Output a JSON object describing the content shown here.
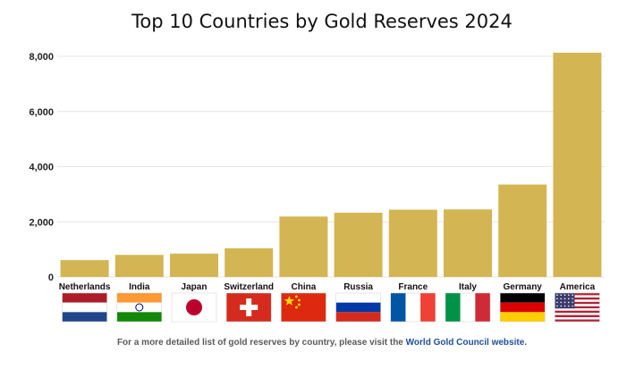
{
  "title": "Top 10 Countries by Gold Reserves 2024",
  "footnote": {
    "text": "For a more detailed list of gold reserves by country, please visit the ",
    "link_text": "World Gold Council website",
    "end": "."
  },
  "colors": {
    "bar": "#d4b553",
    "grid": "#e6e6e6",
    "link": "#1f4e9a"
  },
  "chart_data": {
    "type": "bar",
    "title": "Top 10 Countries by Gold Reserves 2024",
    "xlabel": "",
    "ylabel": "",
    "ylim": [
      0,
      8000
    ],
    "yticks": [
      0,
      2000,
      4000,
      6000,
      8000
    ],
    "ytick_labels": [
      "0",
      "2,000",
      "4,000",
      "6,000",
      "8,000"
    ],
    "grid": true,
    "categories": [
      "Netherlands",
      "India",
      "Japan",
      "Switzerland",
      "China",
      "Russia",
      "France",
      "Italy",
      "Germany",
      "America"
    ],
    "values": [
      612,
      800,
      846,
      1040,
      2190,
      2330,
      2440,
      2450,
      3350,
      8130
    ],
    "flags": [
      "netherlands-flag",
      "india-flag",
      "japan-flag",
      "switzerland-flag",
      "china-flag",
      "russia-flag",
      "france-flag",
      "italy-flag",
      "germany-flag",
      "america-flag"
    ]
  }
}
